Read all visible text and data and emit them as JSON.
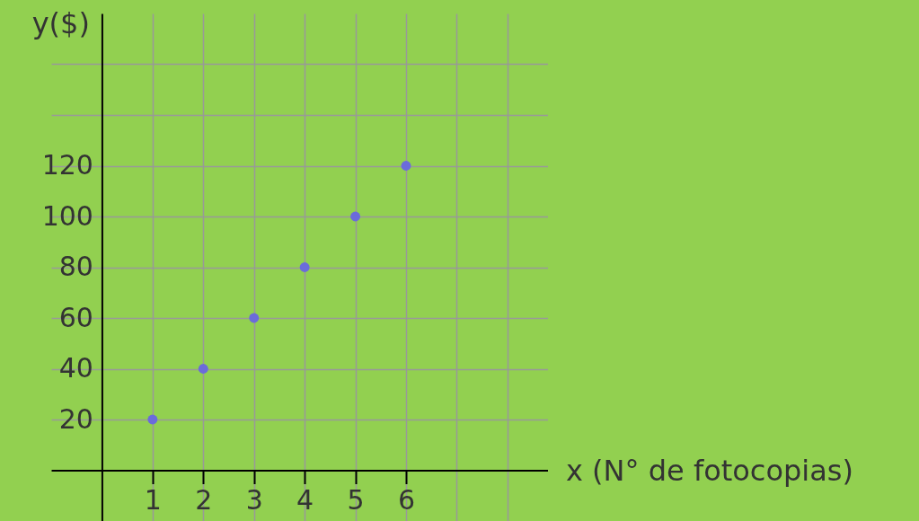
{
  "chart_data": {
    "type": "scatter",
    "xlabel": "x  (N° de fotocopias)",
    "ylabel": "y($)",
    "x": [
      1,
      2,
      3,
      4,
      5,
      6
    ],
    "values": [
      20,
      40,
      60,
      80,
      100,
      120
    ],
    "color": "#6b6bdb",
    "xlim": [
      -1,
      8.8
    ],
    "ylim": [
      -20,
      180
    ],
    "xticks": [
      1,
      2,
      3,
      4,
      5,
      6,
      {
        "value": 7,
        "label": null
      },
      {
        "value": 8,
        "label": null
      }
    ],
    "yticks": [
      20,
      40,
      60,
      80,
      100,
      120,
      {
        "value": 140,
        "label": null
      },
      {
        "value": 160,
        "label": null
      }
    ],
    "grid": true,
    "marker": "circle"
  }
}
